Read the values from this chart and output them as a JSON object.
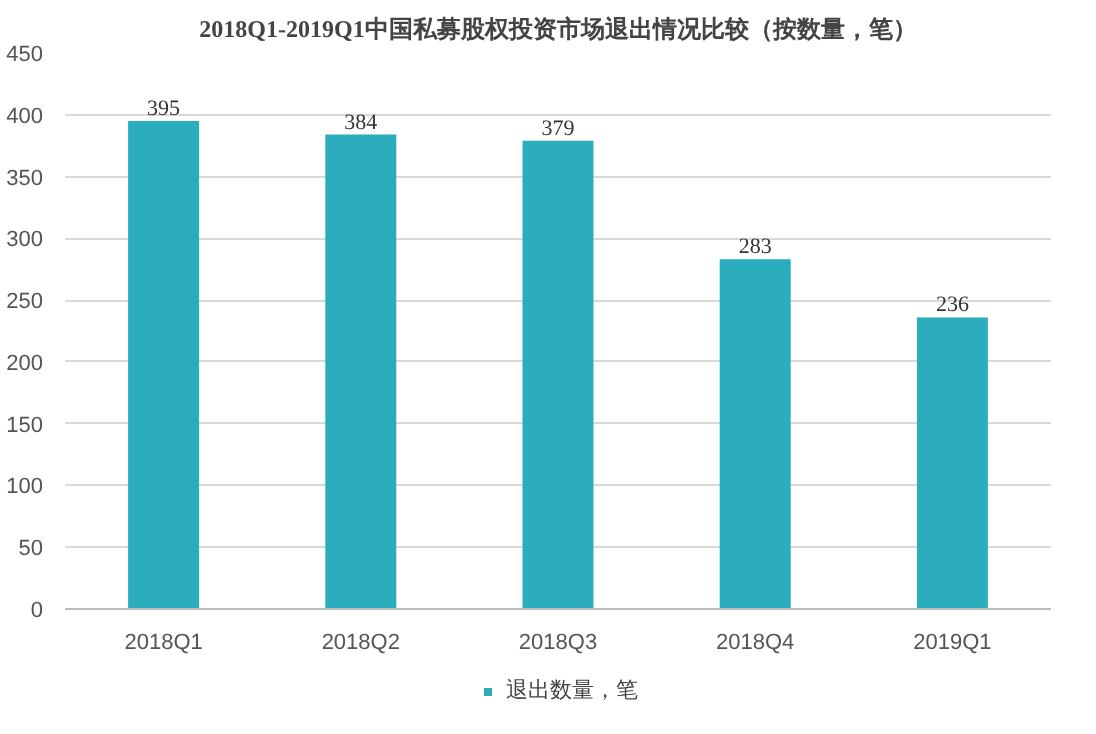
{
  "chart_data": {
    "type": "bar",
    "title": "2018Q1-2019Q1中国私募股权投资市场退出情况比较（按数量，笔）",
    "categories": [
      "2018Q1",
      "2018Q2",
      "2018Q3",
      "2018Q4",
      "2019Q1"
    ],
    "series": [
      {
        "name": "退出数量，笔",
        "color": "#2badbd",
        "values": [
          395,
          384,
          379,
          283,
          236
        ]
      }
    ],
    "ylim": [
      0,
      450
    ],
    "yticks": [
      0,
      50,
      100,
      150,
      200,
      250,
      300,
      350,
      400,
      450
    ],
    "grid": "y",
    "legend": "bottom",
    "data_labels": true
  }
}
